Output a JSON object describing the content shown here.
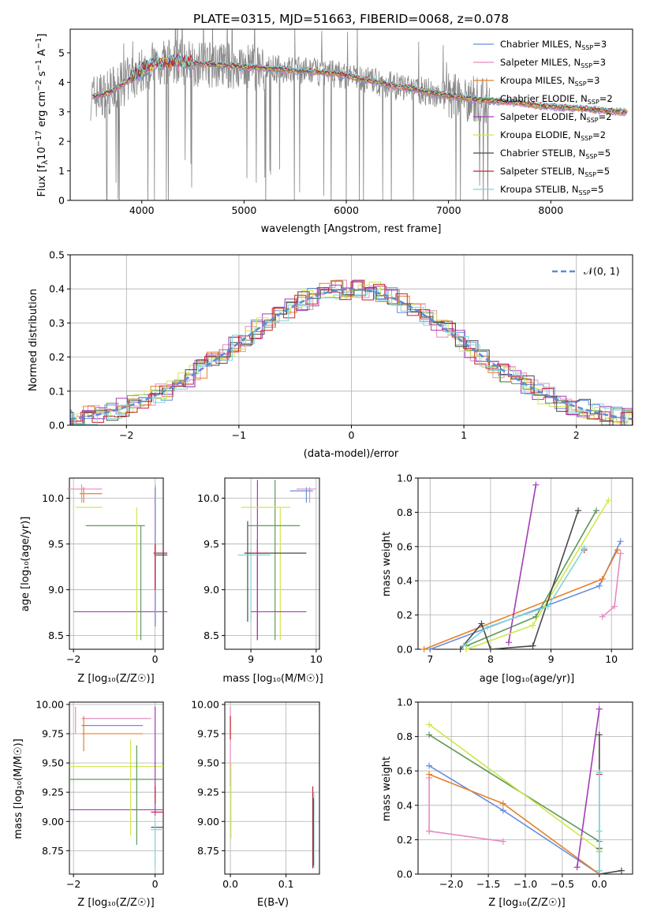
{
  "chart_data": [
    {
      "id": "spectrum",
      "type": "line",
      "title": "PLATE=0315, MJD=51663, FIBERID=0068, z=0.078",
      "xlabel": "wavelength [Angstrom, rest frame]",
      "ylabel_parts": {
        "a": "Flux [f",
        "b": "λ",
        "c": "10",
        "d": "−17",
        "e": " erg cm",
        "f": "−2",
        "g": " s",
        "h": "−1",
        "i": " A",
        "j": "−1",
        "k": "]"
      },
      "xlim": [
        3300,
        8800
      ],
      "ylim": [
        0,
        5.8
      ],
      "xticks": [
        4000,
        5000,
        6000,
        7000,
        8000
      ],
      "yticks": [
        0,
        1,
        2,
        3,
        4,
        5
      ],
      "legend_position": "right",
      "legend": [
        {
          "label": "Chabrier MILES, N",
          "sub": "SSP",
          "suffix": "=3",
          "color": "#6a8ede"
        },
        {
          "label": "Salpeter MILES, N",
          "sub": "SSP",
          "suffix": "=3",
          "color": "#e58bc1"
        },
        {
          "label": "Kroupa MILES, N",
          "sub": "SSP",
          "suffix": "=3",
          "color": "#e6802a"
        },
        {
          "label": "Chabrier ELODIE, N",
          "sub": "SSP",
          "suffix": "=2",
          "color": "#5f9a5a"
        },
        {
          "label": "Salpeter ELODIE, N",
          "sub": "SSP",
          "suffix": "=2",
          "color": "#a43bb8"
        },
        {
          "label": "Kroupa ELODIE, N",
          "sub": "SSP",
          "suffix": "=2",
          "color": "#cfe84f"
        },
        {
          "label": "Chabrier STELIB, N",
          "sub": "SSP",
          "suffix": "=5",
          "color": "#4a4a4a"
        },
        {
          "label": "Salpeter STELIB, N",
          "sub": "SSP",
          "suffix": "=5",
          "color": "#c2262e"
        },
        {
          "label": "Kroupa STELIB, N",
          "sub": "SSP",
          "suffix": "=5",
          "color": "#7fd3da"
        }
      ],
      "continuum": {
        "x": [
          3500,
          3650,
          3800,
          3950,
          4100,
          4300,
          4500,
          4700,
          4900,
          5100,
          5300,
          5500,
          5700,
          5900,
          6100,
          6300,
          6500,
          6700,
          6900,
          7100,
          7300,
          7500,
          7700,
          7900,
          8100,
          8300,
          8500,
          8700
        ],
        "y": [
          3.5,
          3.6,
          3.9,
          4.3,
          4.6,
          4.7,
          4.65,
          4.6,
          4.55,
          4.5,
          4.45,
          4.4,
          4.35,
          4.3,
          4.15,
          4.0,
          3.85,
          3.75,
          3.6,
          3.5,
          3.4,
          3.35,
          3.3,
          3.2,
          3.15,
          3.1,
          3.05,
          3.0
        ]
      }
    },
    {
      "id": "residuals",
      "type": "histogram",
      "xlabel": "(data-model)/error",
      "ylabel": "Normed distribution",
      "xlim": [
        -2.5,
        2.5
      ],
      "ylim": [
        0,
        0.5
      ],
      "xticks": [
        -2,
        -1,
        0,
        1,
        2
      ],
      "yticks": [
        0.0,
        0.1,
        0.2,
        0.3,
        0.4,
        0.5
      ],
      "grid": true,
      "legend_position": "top-right",
      "reference_label": "𝒩(0, 1)",
      "reference_color": "#5a8dd6"
    },
    {
      "id": "age-Z",
      "type": "errorbar",
      "xlabel": "Z [log₁₀(Z/Z☉)]",
      "ylabel": "age  [log₁₀(age/yr)]",
      "xlim": [
        -2.1,
        0.2
      ],
      "ylim": [
        8.35,
        10.22
      ],
      "xticks": [
        -2,
        0
      ],
      "yticks": [
        8.5,
        9.0,
        9.5,
        10.0
      ],
      "grid": true,
      "points": [
        {
          "x": -1.3,
          "xerr": [
            0.85,
            0
          ],
          "y": 10.1,
          "color": "#e58bc1"
        },
        {
          "x": -1.3,
          "xerr": [
            0.55,
            0
          ],
          "y": 10.05,
          "color": "#e6802a"
        },
        {
          "x": -1.8,
          "xerr": [
            0.15,
            0.5
          ],
          "y": 9.9,
          "color": "#cfe84f"
        },
        {
          "x": -0.35,
          "xerr": [
            1.35,
            0.1
          ],
          "y": 9.7,
          "color": "#5f9a5a"
        },
        {
          "x": 0,
          "xerr": [
            0.04,
            0.3
          ],
          "y": 9.4,
          "color": "#c2262e"
        },
        {
          "x": 0,
          "xerr": [
            0.02,
            0.3
          ],
          "y": 9.38,
          "color": "#4a4a4a"
        },
        {
          "x": 0,
          "xerr": [
            2.0,
            0.3
          ],
          "y": 8.76,
          "color": "#a43bb8"
        }
      ]
    },
    {
      "id": "age-mass",
      "type": "errorbar",
      "xlabel": "mass [log₁₀(M/M☉)]",
      "ylabel": "",
      "xlim": [
        8.6,
        10.05
      ],
      "ylim": [
        8.35,
        10.22
      ],
      "xticks": [
        9,
        10
      ],
      "yticks": [
        8.5,
        9.0,
        9.5,
        10.0
      ],
      "grid": true
    },
    {
      "id": "weight-age",
      "type": "line",
      "xlabel": "age  [log₁₀(age/yr)]",
      "ylabel": "mass weight",
      "xlim": [
        6.8,
        10.35
      ],
      "ylim": [
        0,
        1.0
      ],
      "xticks": [
        7,
        8,
        9,
        10
      ],
      "yticks": [
        0.0,
        0.2,
        0.4,
        0.6,
        0.8,
        1.0
      ],
      "grid": true,
      "series": [
        {
          "color": "#6a8ede",
          "x": [
            7.0,
            9.8,
            10.15
          ],
          "y": [
            0.0,
            0.37,
            0.63
          ]
        },
        {
          "color": "#e58bc1",
          "x": [
            9.85,
            10.05,
            10.15
          ],
          "y": [
            0.19,
            0.25,
            0.56
          ]
        },
        {
          "color": "#e6802a",
          "x": [
            6.9,
            9.85,
            10.1
          ],
          "y": [
            0.0,
            0.41,
            0.58
          ]
        },
        {
          "color": "#5f9a5a",
          "x": [
            7.6,
            8.75,
            9.75
          ],
          "y": [
            0.02,
            0.19,
            0.81
          ]
        },
        {
          "color": "#a43bb8",
          "x": [
            8.3,
            8.75
          ],
          "y": [
            0.04,
            0.96
          ]
        },
        {
          "color": "#cfe84f",
          "x": [
            7.6,
            8.7,
            9.95
          ],
          "y": [
            0.0,
            0.14,
            0.87
          ]
        },
        {
          "color": "#4a4a4a",
          "x": [
            7.5,
            7.85,
            8.0,
            8.7,
            9.45
          ],
          "y": [
            0.0,
            0.15,
            0.0,
            0.02,
            0.81
          ]
        },
        {
          "color": "#c2262e",
          "x": [
            9.55
          ],
          "y": [
            0.58
          ]
        },
        {
          "color": "#7fd3da",
          "x": [
            7.55,
            7.95,
            8.95,
            9.55
          ],
          "y": [
            0.02,
            0.13,
            0.25,
            0.59
          ]
        }
      ]
    },
    {
      "id": "mass-Z",
      "type": "errorbar",
      "xlabel": "Z [log₁₀(Z/Z☉)]",
      "ylabel": "mass [log₁₀(M/M☉)]",
      "xlim": [
        -2.1,
        0.2
      ],
      "ylim": [
        8.55,
        10.02
      ],
      "xticks": [
        -2,
        0
      ],
      "yticks": [
        8.75,
        9.0,
        9.25,
        9.5,
        9.75,
        10.0
      ],
      "grid": true
    },
    {
      "id": "mass-EBV",
      "type": "errorbar",
      "xlabel": "E(B-V)",
      "ylabel": "",
      "xlim": [
        -0.01,
        0.16
      ],
      "ylim": [
        8.55,
        10.02
      ],
      "xticks": [
        0.0,
        0.1
      ],
      "yticks": [
        8.75,
        9.0,
        9.25,
        9.5,
        9.75,
        10.0
      ],
      "grid": true
    },
    {
      "id": "weight-Z",
      "type": "line",
      "xlabel": "Z [log₁₀(Z/Z☉)]",
      "ylabel": "mass weight",
      "xlim": [
        -2.45,
        0.45
      ],
      "ylim": [
        0,
        1.0
      ],
      "xticks": [
        -2.0,
        -1.5,
        -1.0,
        -0.5,
        0.0
      ],
      "yticks": [
        0.0,
        0.2,
        0.4,
        0.6,
        0.8,
        1.0
      ],
      "grid": true,
      "series": [
        {
          "color": "#6a8ede",
          "x": [
            -2.3,
            -1.3,
            0.0
          ],
          "y": [
            0.63,
            0.37,
            0.0
          ]
        },
        {
          "color": "#e58bc1",
          "x": [
            -2.3,
            -2.3,
            -2.3,
            -1.3
          ],
          "y": [
            0.56,
            0.25,
            0.25,
            0.19
          ]
        },
        {
          "color": "#e6802a",
          "x": [
            -2.3,
            -1.3,
            0.0
          ],
          "y": [
            0.58,
            0.41,
            0.0
          ]
        },
        {
          "color": "#5f9a5a",
          "x": [
            -2.3,
            0.0
          ],
          "y": [
            0.81,
            0.19
          ]
        },
        {
          "color": "#a43bb8",
          "x": [
            -0.3,
            0.0
          ],
          "y": [
            0.04,
            0.96
          ]
        },
        {
          "color": "#cfe84f",
          "x": [
            -2.3,
            0.0
          ],
          "y": [
            0.87,
            0.14
          ]
        },
        {
          "color": "#4a4a4a",
          "x": [
            0.3,
            0.0,
            0.0,
            0.0,
            0.0
          ],
          "y": [
            0.02,
            0.0,
            0.15,
            0.02,
            0.81
          ]
        },
        {
          "color": "#c2262e",
          "x": [
            0.0
          ],
          "y": [
            0.58
          ]
        },
        {
          "color": "#7fd3da",
          "x": [
            0.0,
            0.0,
            0.0,
            0.0
          ],
          "y": [
            0.02,
            0.13,
            0.25,
            0.59
          ]
        }
      ]
    }
  ]
}
